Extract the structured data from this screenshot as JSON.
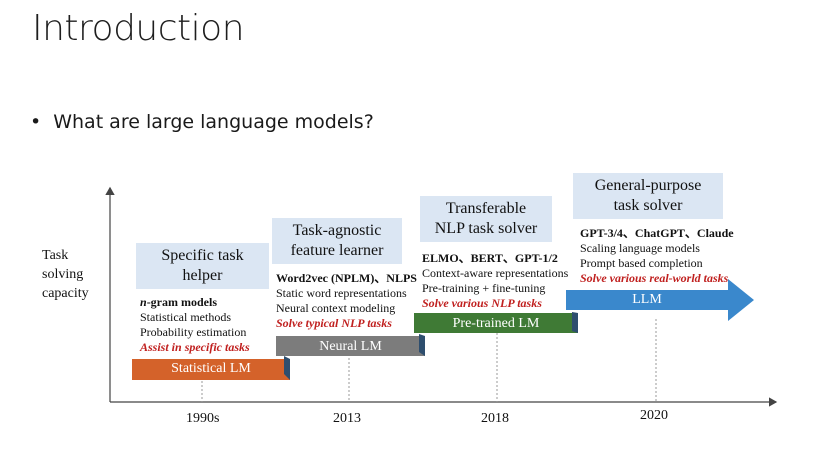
{
  "slide": {
    "title": "Introduction",
    "bullet": "What are large language models?"
  },
  "diagram": {
    "y_axis_label": [
      "Task",
      "solving",
      "capacity"
    ],
    "stages": [
      {
        "box_lines": [
          "Specific task",
          "helper"
        ],
        "header_prefix": "n",
        "header": "-gram models",
        "lines": [
          "Statistical methods",
          "Probability estimation"
        ],
        "highlight": "Assist in specific tasks",
        "model": "Statistical LM",
        "year": "1990s",
        "color": "#d4622a"
      },
      {
        "box_lines": [
          "Task-agnostic",
          "feature learner"
        ],
        "header": "Word2vec (NPLM)、NLPS",
        "lines": [
          "Static word representations",
          "Neural context modeling"
        ],
        "highlight": "Solve typical NLP tasks",
        "model": "Neural LM",
        "year": "2013",
        "color": "#7c7c7c"
      },
      {
        "box_lines": [
          "Transferable",
          "NLP task solver"
        ],
        "header": "ELMO、BERT、GPT-1/2",
        "lines": [
          "Context-aware representations",
          "Pre-training + fine-tuning"
        ],
        "highlight": "Solve various NLP tasks",
        "model": "Pre-trained LM",
        "year": "2018",
        "color": "#3f7a35"
      },
      {
        "box_lines": [
          "General-purpose",
          "task solver"
        ],
        "header": "GPT-3/4、ChatGPT、Claude",
        "lines": [
          "Scaling language models",
          "Prompt based completion"
        ],
        "highlight": "Solve various real-world tasks",
        "model": "LLM",
        "year": "2020",
        "color": "#3a88cc"
      }
    ]
  }
}
